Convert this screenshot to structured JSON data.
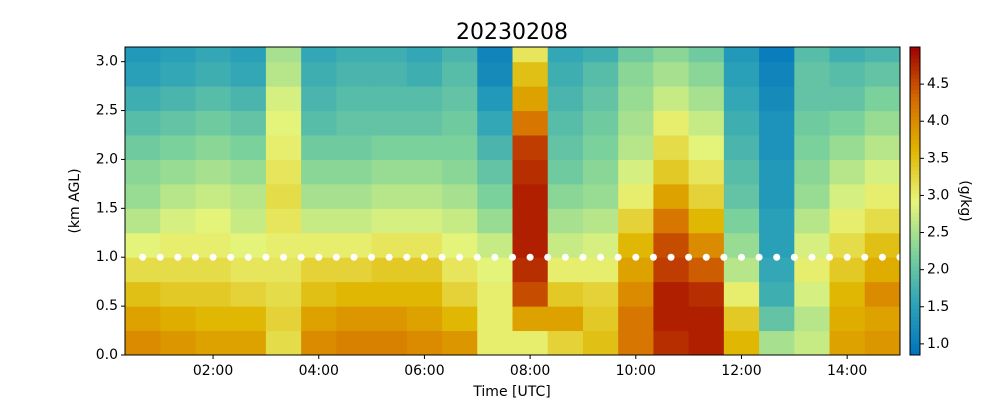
{
  "chart_data": {
    "type": "heatmap",
    "title": "20230208",
    "x_label": "Time [UTC]",
    "y_label": "(km AGL)",
    "colorbar_label": "(g/kg)",
    "x_edges": [
      20,
      60,
      100,
      140,
      180,
      220,
      260,
      300,
      340,
      380,
      420,
      460,
      500,
      540,
      580,
      620,
      660,
      700,
      740,
      780,
      820,
      860,
      900
    ],
    "y_edges": [
      0,
      0.25,
      0.5,
      0.75,
      1.0,
      1.25,
      1.5,
      1.75,
      2.0,
      2.25,
      2.5,
      2.75,
      3.0,
      3.25
    ],
    "values": [
      [
        4.0,
        3.8,
        3.5,
        3.2,
        2.9,
        2.6,
        2.4,
        2.3,
        2.1,
        1.9,
        1.7,
        1.5,
        1.4
      ],
      [
        3.9,
        3.7,
        3.4,
        3.2,
        3.0,
        2.8,
        2.6,
        2.4,
        2.2,
        2.0,
        1.8,
        1.6,
        1.5
      ],
      [
        3.8,
        3.6,
        3.4,
        3.2,
        3.0,
        2.9,
        2.7,
        2.5,
        2.3,
        2.1,
        1.9,
        1.7,
        1.6
      ],
      [
        3.8,
        3.6,
        3.3,
        3.1,
        2.9,
        2.7,
        2.6,
        2.4,
        2.2,
        2.0,
        1.8,
        1.6,
        1.5
      ],
      [
        3.2,
        3.3,
        3.2,
        3.1,
        3.0,
        3.1,
        3.2,
        3.1,
        3.0,
        2.9,
        2.8,
        2.6,
        2.5
      ],
      [
        4.0,
        3.8,
        3.5,
        3.3,
        3.0,
        2.7,
        2.5,
        2.3,
        2.1,
        1.9,
        1.8,
        1.7,
        1.6
      ],
      [
        4.1,
        3.9,
        3.6,
        3.3,
        3.0,
        2.7,
        2.5,
        2.3,
        2.1,
        2.0,
        1.9,
        1.8,
        1.7
      ],
      [
        4.1,
        3.9,
        3.6,
        3.4,
        3.1,
        2.8,
        2.6,
        2.4,
        2.2,
        2.0,
        1.9,
        1.8,
        1.7
      ],
      [
        4.0,
        3.8,
        3.6,
        3.4,
        3.1,
        2.8,
        2.6,
        2.4,
        2.2,
        2.0,
        1.9,
        1.7,
        1.6
      ],
      [
        3.9,
        3.6,
        3.3,
        3.1,
        2.9,
        2.7,
        2.5,
        2.3,
        2.2,
        2.1,
        2.0,
        1.9,
        1.8
      ],
      [
        3.0,
        3.0,
        3.0,
        2.9,
        2.7,
        2.4,
        2.2,
        2.0,
        1.8,
        1.6,
        1.4,
        1.2,
        1.1
      ],
      [
        3.0,
        3.8,
        4.5,
        4.7,
        4.8,
        4.8,
        4.8,
        4.7,
        4.6,
        4.2,
        3.8,
        3.5,
        3.1
      ],
      [
        3.3,
        3.8,
        3.4,
        3.0,
        2.7,
        2.5,
        2.3,
        2.1,
        2.0,
        1.9,
        1.8,
        1.7,
        1.6
      ],
      [
        3.5,
        3.4,
        3.3,
        3.0,
        2.8,
        2.6,
        2.4,
        2.3,
        2.2,
        2.1,
        2.0,
        1.9,
        1.7
      ],
      [
        4.2,
        4.2,
        4.0,
        3.8,
        3.6,
        3.3,
        3.0,
        2.8,
        2.6,
        2.5,
        2.4,
        2.3,
        2.1
      ],
      [
        4.7,
        4.8,
        4.8,
        4.6,
        4.5,
        4.2,
        3.8,
        3.4,
        3.2,
        3.0,
        2.7,
        2.5,
        2.3
      ],
      [
        4.8,
        4.8,
        4.7,
        4.4,
        4.0,
        3.6,
        3.3,
        3.1,
        2.9,
        2.7,
        2.5,
        2.3,
        2.1
      ],
      [
        3.6,
        3.4,
        3.0,
        2.6,
        2.4,
        2.2,
        2.0,
        1.9,
        1.8,
        1.7,
        1.6,
        1.5,
        1.4
      ],
      [
        2.5,
        2.0,
        1.7,
        1.6,
        1.5,
        1.5,
        1.4,
        1.4,
        1.3,
        1.3,
        1.2,
        1.1,
        1.0
      ],
      [
        2.7,
        2.6,
        2.8,
        3.0,
        2.8,
        2.6,
        2.4,
        2.3,
        2.2,
        2.1,
        2.0,
        2.0,
        1.9
      ],
      [
        3.8,
        3.7,
        3.6,
        3.4,
        3.2,
        3.0,
        2.8,
        2.6,
        2.4,
        2.2,
        2.0,
        1.9,
        1.7
      ],
      [
        3.9,
        3.8,
        4.0,
        3.7,
        3.5,
        3.2,
        3.0,
        2.8,
        2.6,
        2.4,
        2.2,
        2.0,
        1.8
      ]
    ],
    "markers": {
      "color": "#ffffff",
      "x": [
        40,
        60,
        80,
        100,
        120,
        140,
        160,
        180,
        200,
        220,
        240,
        260,
        280,
        300,
        320,
        340,
        360,
        380,
        400,
        420,
        440,
        460,
        480,
        500,
        520,
        540,
        560,
        580,
        600,
        620,
        640,
        660,
        680,
        700,
        720,
        740,
        760,
        780,
        800,
        820,
        840,
        860,
        880,
        900
      ],
      "y": [
        1,
        1,
        1,
        1,
        1,
        1,
        1,
        1,
        1,
        1,
        1,
        1,
        1,
        1,
        1,
        1,
        1,
        1,
        1,
        1,
        1,
        1,
        1,
        1,
        1,
        1,
        1,
        1,
        1,
        1,
        1,
        1,
        1,
        1,
        1,
        1,
        1,
        1,
        1,
        1,
        1,
        1,
        1,
        1
      ]
    },
    "xlim": [
      20,
      900
    ],
    "xticks": [
      {
        "value": 120,
        "label": "02:00"
      },
      {
        "value": 240,
        "label": "04:00"
      },
      {
        "value": 360,
        "label": "06:00"
      },
      {
        "value": 480,
        "label": "08:00"
      },
      {
        "value": 600,
        "label": "10:00"
      },
      {
        "value": 720,
        "label": "12:00"
      },
      {
        "value": 840,
        "label": "14:00"
      }
    ],
    "ylim": [
      0,
      3.15
    ],
    "yticks": [
      {
        "value": 0,
        "label": "0.0"
      },
      {
        "value": 0.5,
        "label": "0.5"
      },
      {
        "value": 1,
        "label": "1.0"
      },
      {
        "value": 1.5,
        "label": "1.5"
      },
      {
        "value": 2,
        "label": "2.0"
      },
      {
        "value": 2.5,
        "label": "2.5"
      },
      {
        "value": 3,
        "label": "3.0"
      }
    ],
    "clim": [
      0.85,
      5.0
    ],
    "cticks": [
      {
        "value": 1,
        "label": "1.0"
      },
      {
        "value": 1.5,
        "label": "1.5"
      },
      {
        "value": 2,
        "label": "2.0"
      },
      {
        "value": 2.5,
        "label": "2.5"
      },
      {
        "value": 3,
        "label": "3.0"
      },
      {
        "value": 3.5,
        "label": "3.5"
      },
      {
        "value": 4,
        "label": "4.0"
      },
      {
        "value": 4.5,
        "label": "4.5"
      }
    ],
    "colormap": [
      "#0072bd",
      "#2ca3b8",
      "#7fd39a",
      "#e8f57a",
      "#e0b500",
      "#d56a00",
      "#a00000"
    ]
  }
}
